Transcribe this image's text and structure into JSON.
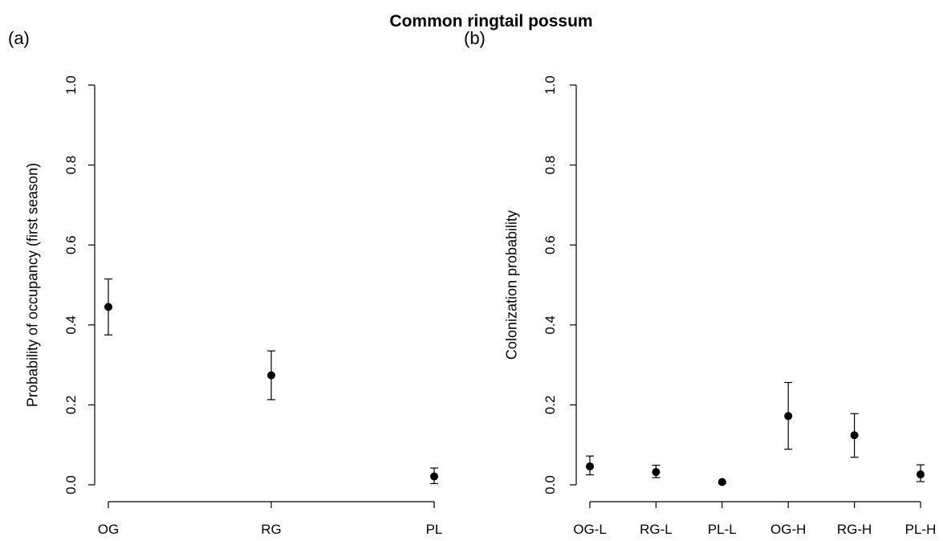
{
  "title": "Common ringtail possum",
  "chart_data": [
    {
      "type": "scatter",
      "panel_label": "(a)",
      "categories": [
        "OG",
        "RG",
        "PL"
      ],
      "values": [
        0.445,
        0.274,
        0.021
      ],
      "lower": [
        0.375,
        0.213,
        0.003
      ],
      "upper": [
        0.515,
        0.335,
        0.042
      ],
      "xlabel": "",
      "ylabel": "Probability of occupancy (first season)",
      "ylim": [
        0,
        1.0
      ],
      "yticks": [
        "0.0",
        "0.2",
        "0.4",
        "0.6",
        "0.8",
        "1.0"
      ],
      "grid": false
    },
    {
      "type": "scatter",
      "panel_label": "(b)",
      "categories": [
        "OG-L",
        "RG-L",
        "PL-L",
        "OG-H",
        "RG-H",
        "PL-H"
      ],
      "values": [
        0.046,
        0.032,
        0.007,
        0.172,
        0.124,
        0.026
      ],
      "lower": [
        0.025,
        0.018,
        0.003,
        0.089,
        0.069,
        0.008
      ],
      "upper": [
        0.072,
        0.049,
        0.008,
        0.256,
        0.178,
        0.05
      ],
      "xlabel": "",
      "ylabel": "Colonization probability",
      "ylim": [
        0,
        1.0
      ],
      "yticks": [
        "0.0",
        "0.2",
        "0.4",
        "0.6",
        "0.8",
        "1.0"
      ],
      "grid": false
    }
  ]
}
